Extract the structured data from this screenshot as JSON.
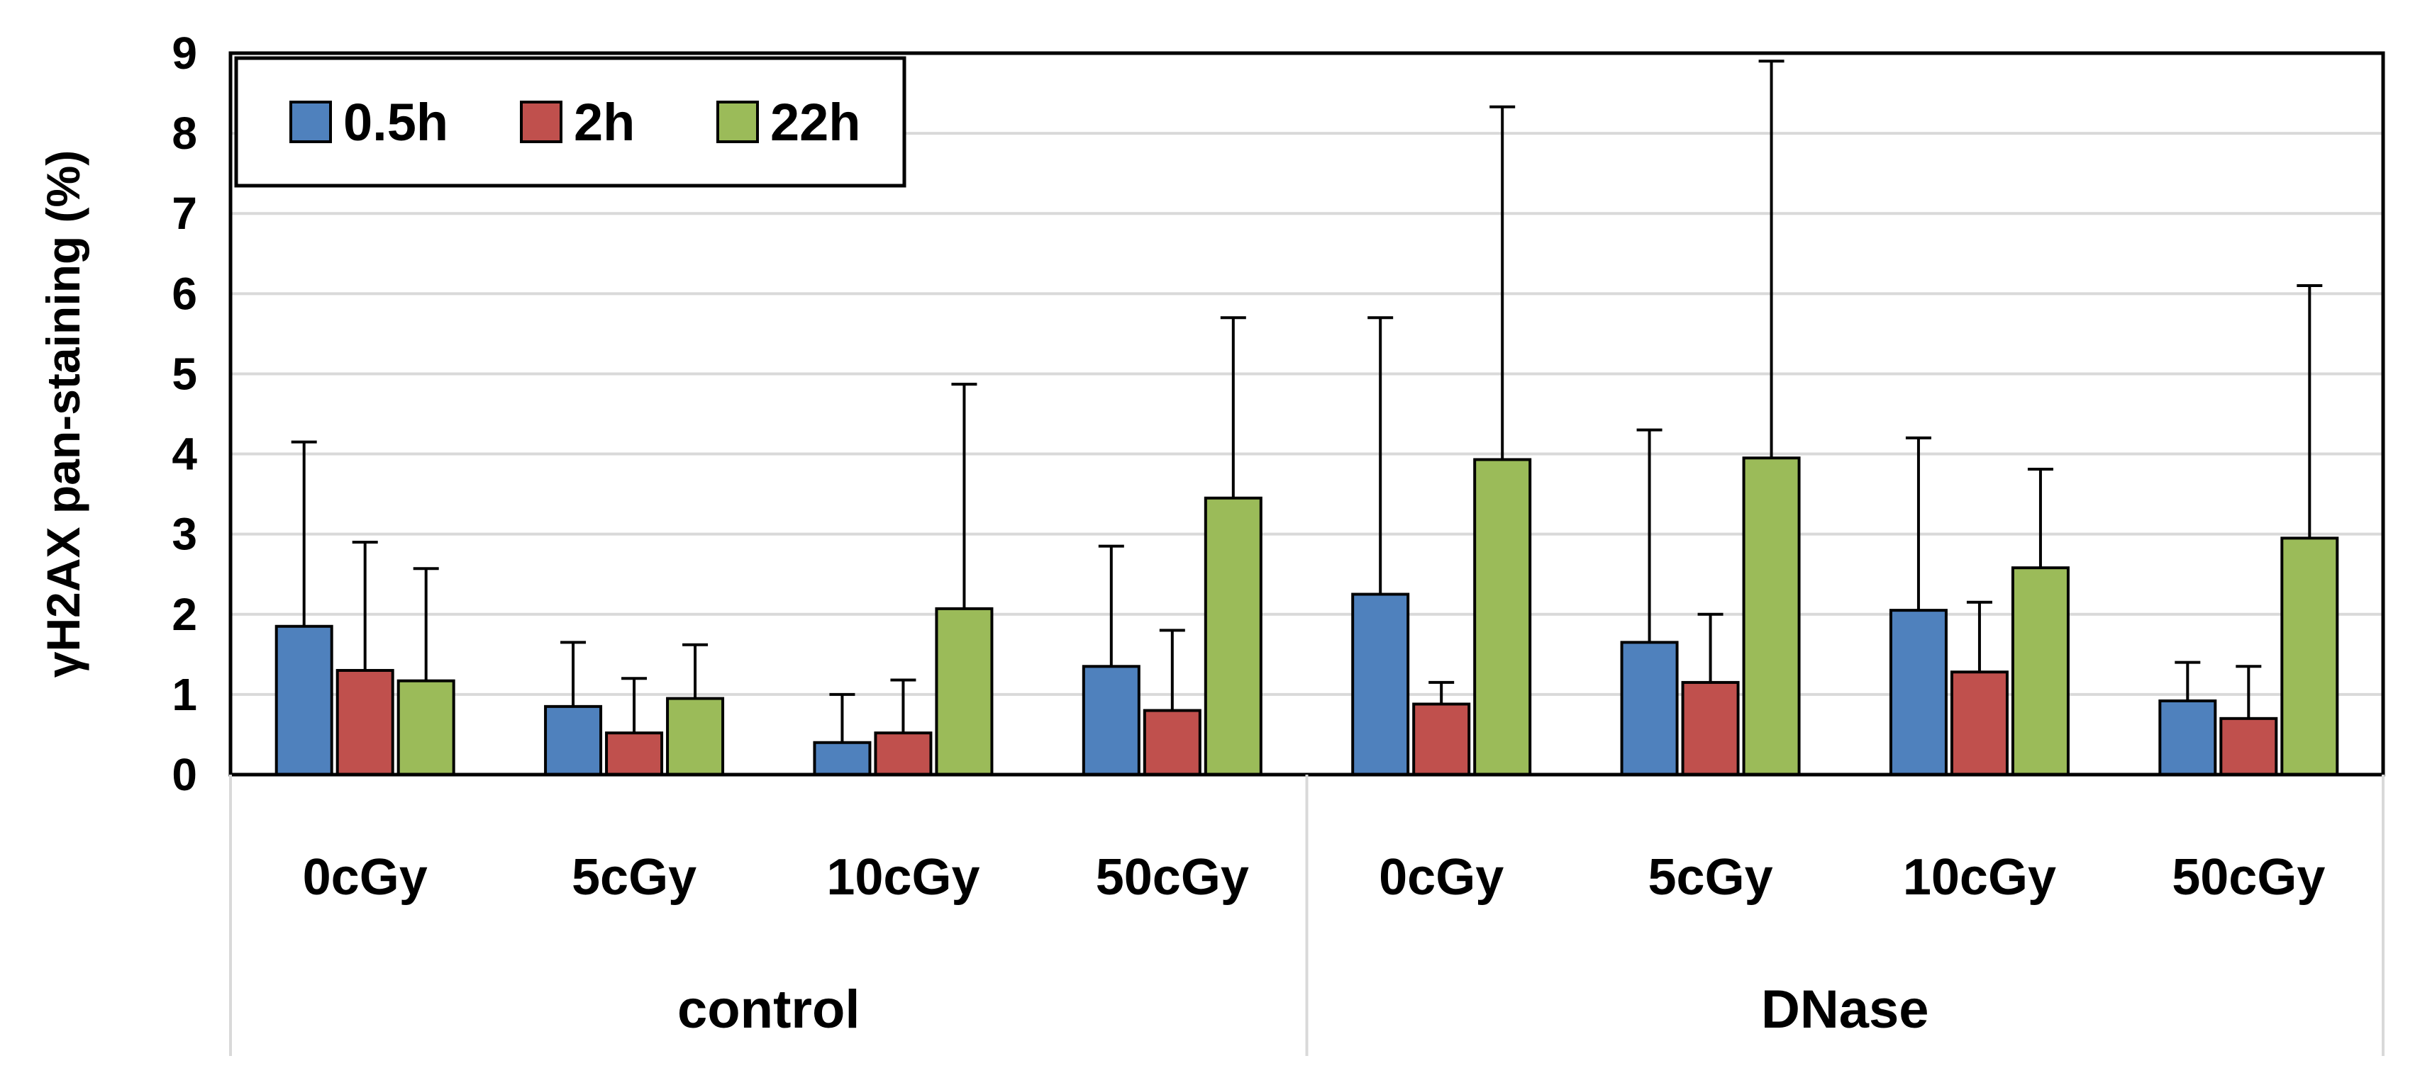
{
  "chart_data": {
    "type": "bar",
    "title": "",
    "xlabel": "",
    "ylabel": "γH2AX pan-staining (%)",
    "ylim": [
      0,
      9
    ],
    "yticks": [
      "0",
      "1",
      "2",
      "3",
      "4",
      "5",
      "6",
      "7",
      "8",
      "9"
    ],
    "grid": true,
    "legend_position": "top-left",
    "groups": [
      {
        "label": "control",
        "categories": [
          "0cGy",
          "5cGy",
          "10cGy",
          "50cGy"
        ]
      },
      {
        "label": "DNase",
        "categories": [
          "0cGy",
          "5cGy",
          "10cGy",
          "50cGy"
        ]
      }
    ],
    "series": [
      {
        "name": "0.5h",
        "color": "#4f81bd",
        "values": [
          1.85,
          0.85,
          0.4,
          1.35,
          2.25,
          1.65,
          2.05,
          0.92
        ],
        "errors": [
          2.3,
          0.8,
          0.6,
          1.5,
          3.45,
          2.65,
          2.15,
          0.48
        ]
      },
      {
        "name": "2h",
        "color": "#c0504d",
        "values": [
          1.3,
          0.52,
          0.52,
          0.8,
          0.88,
          1.15,
          1.28,
          0.7
        ],
        "errors": [
          1.6,
          0.68,
          0.66,
          1.0,
          0.27,
          0.85,
          0.87,
          0.65
        ]
      },
      {
        "name": "22h",
        "color": "#9bbb59",
        "values": [
          1.17,
          0.95,
          2.07,
          3.45,
          3.93,
          3.95,
          2.58,
          2.95
        ],
        "errors": [
          1.4,
          0.67,
          2.8,
          2.25,
          4.4,
          4.95,
          1.23,
          3.15
        ]
      }
    ]
  }
}
